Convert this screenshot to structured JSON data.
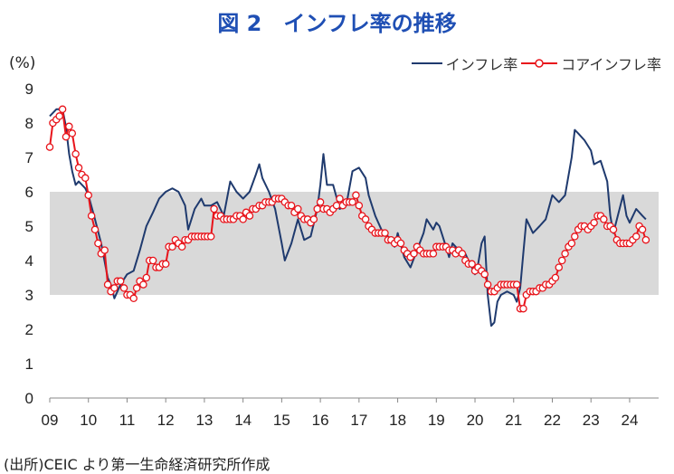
{
  "title": "図 2　インフレ率の推移",
  "unit_label": "(%)",
  "source": "(出所)CEIC より第一生命経済研究所作成",
  "chart_data": {
    "type": "line",
    "x_tick_labels": [
      "09",
      "10",
      "11",
      "12",
      "13",
      "14",
      "15",
      "16",
      "17",
      "18",
      "19",
      "20",
      "21",
      "22",
      "23",
      "24"
    ],
    "y_ticks": [
      0,
      1,
      2,
      3,
      4,
      5,
      6,
      7,
      8,
      9
    ],
    "ylim": [
      0,
      9
    ],
    "x_range": [
      2009.0,
      2024.75
    ],
    "band": {
      "from": 3,
      "to": 6,
      "color": "#d9d9d9"
    },
    "series": [
      {
        "name": "インフレ率",
        "color": "#1f3a6e",
        "marker": false,
        "points": [
          [
            2009.0,
            8.2
          ],
          [
            2009.17,
            8.4
          ],
          [
            2009.33,
            8.4
          ],
          [
            2009.42,
            7.9
          ],
          [
            2009.5,
            7.1
          ],
          [
            2009.58,
            6.6
          ],
          [
            2009.67,
            6.2
          ],
          [
            2009.75,
            6.3
          ],
          [
            2009.92,
            6.1
          ],
          [
            2010.0,
            5.9
          ],
          [
            2010.17,
            5.2
          ],
          [
            2010.33,
            4.5
          ],
          [
            2010.5,
            3.5
          ],
          [
            2010.58,
            3.3
          ],
          [
            2010.67,
            2.9
          ],
          [
            2010.83,
            3.3
          ],
          [
            2011.0,
            3.6
          ],
          [
            2011.17,
            3.7
          ],
          [
            2011.33,
            4.3
          ],
          [
            2011.5,
            5.0
          ],
          [
            2011.67,
            5.4
          ],
          [
            2011.83,
            5.8
          ],
          [
            2012.0,
            6.0
          ],
          [
            2012.17,
            6.1
          ],
          [
            2012.33,
            6.0
          ],
          [
            2012.5,
            5.6
          ],
          [
            2012.58,
            4.9
          ],
          [
            2012.75,
            5.5
          ],
          [
            2012.92,
            5.8
          ],
          [
            2013.0,
            5.6
          ],
          [
            2013.17,
            5.6
          ],
          [
            2013.33,
            5.7
          ],
          [
            2013.5,
            5.3
          ],
          [
            2013.67,
            6.3
          ],
          [
            2013.83,
            6.0
          ],
          [
            2014.0,
            5.8
          ],
          [
            2014.17,
            6.0
          ],
          [
            2014.33,
            6.5
          ],
          [
            2014.42,
            6.8
          ],
          [
            2014.5,
            6.4
          ],
          [
            2014.67,
            6.0
          ],
          [
            2014.83,
            5.5
          ],
          [
            2015.0,
            4.5
          ],
          [
            2015.08,
            4.0
          ],
          [
            2015.25,
            4.5
          ],
          [
            2015.42,
            5.2
          ],
          [
            2015.58,
            4.6
          ],
          [
            2015.75,
            4.7
          ],
          [
            2015.92,
            5.5
          ],
          [
            2016.0,
            6.2
          ],
          [
            2016.08,
            7.1
          ],
          [
            2016.17,
            6.2
          ],
          [
            2016.33,
            6.2
          ],
          [
            2016.5,
            5.5
          ],
          [
            2016.67,
            5.6
          ],
          [
            2016.83,
            6.6
          ],
          [
            2017.0,
            6.7
          ],
          [
            2017.17,
            6.4
          ],
          [
            2017.25,
            5.9
          ],
          [
            2017.42,
            5.3
          ],
          [
            2017.58,
            4.9
          ],
          [
            2017.75,
            4.7
          ],
          [
            2017.92,
            4.4
          ],
          [
            2018.0,
            4.8
          ],
          [
            2018.17,
            4.1
          ],
          [
            2018.33,
            3.8
          ],
          [
            2018.5,
            4.3
          ],
          [
            2018.67,
            4.8
          ],
          [
            2018.75,
            5.2
          ],
          [
            2018.92,
            4.9
          ],
          [
            2019.0,
            5.1
          ],
          [
            2019.08,
            5.0
          ],
          [
            2019.25,
            4.4
          ],
          [
            2019.33,
            4.1
          ],
          [
            2019.42,
            4.5
          ],
          [
            2019.58,
            4.3
          ],
          [
            2019.75,
            4.2
          ],
          [
            2019.83,
            4.0
          ],
          [
            2019.92,
            3.8
          ],
          [
            2020.0,
            3.6
          ],
          [
            2020.08,
            3.9
          ],
          [
            2020.17,
            4.5
          ],
          [
            2020.25,
            4.7
          ],
          [
            2020.33,
            3.0
          ],
          [
            2020.42,
            2.1
          ],
          [
            2020.5,
            2.2
          ],
          [
            2020.58,
            2.8
          ],
          [
            2020.67,
            3.0
          ],
          [
            2020.83,
            3.1
          ],
          [
            2021.0,
            3.0
          ],
          [
            2021.08,
            2.8
          ],
          [
            2021.17,
            3.2
          ],
          [
            2021.25,
            4.2
          ],
          [
            2021.33,
            5.2
          ],
          [
            2021.5,
            4.8
          ],
          [
            2021.67,
            5.0
          ],
          [
            2021.83,
            5.2
          ],
          [
            2022.0,
            5.9
          ],
          [
            2022.17,
            5.7
          ],
          [
            2022.33,
            5.9
          ],
          [
            2022.5,
            7.0
          ],
          [
            2022.58,
            7.8
          ],
          [
            2022.67,
            7.7
          ],
          [
            2022.83,
            7.5
          ],
          [
            2023.0,
            7.2
          ],
          [
            2023.08,
            6.8
          ],
          [
            2023.25,
            6.9
          ],
          [
            2023.42,
            6.3
          ],
          [
            2023.5,
            5.3
          ],
          [
            2023.58,
            4.8
          ],
          [
            2023.67,
            5.2
          ],
          [
            2023.83,
            5.9
          ],
          [
            2023.92,
            5.3
          ],
          [
            2024.0,
            5.1
          ],
          [
            2024.17,
            5.5
          ],
          [
            2024.33,
            5.3
          ],
          [
            2024.42,
            5.2
          ]
        ]
      },
      {
        "name": "コアインフレ率",
        "color": "#e8141b",
        "marker": true,
        "points": [
          [
            2009.0,
            7.3
          ],
          [
            2009.08,
            8.0
          ],
          [
            2009.17,
            8.1
          ],
          [
            2009.25,
            8.2
          ],
          [
            2009.33,
            8.4
          ],
          [
            2009.42,
            7.6
          ],
          [
            2009.5,
            7.9
          ],
          [
            2009.58,
            7.7
          ],
          [
            2009.67,
            7.1
          ],
          [
            2009.75,
            6.7
          ],
          [
            2009.83,
            6.5
          ],
          [
            2009.92,
            6.4
          ],
          [
            2010.0,
            5.9
          ],
          [
            2010.08,
            5.3
          ],
          [
            2010.17,
            4.9
          ],
          [
            2010.25,
            4.5
          ],
          [
            2010.33,
            4.2
          ],
          [
            2010.42,
            4.3
          ],
          [
            2010.5,
            3.3
          ],
          [
            2010.58,
            3.1
          ],
          [
            2010.67,
            3.2
          ],
          [
            2010.75,
            3.4
          ],
          [
            2010.83,
            3.4
          ],
          [
            2010.92,
            3.2
          ],
          [
            2011.0,
            3.0
          ],
          [
            2011.08,
            3.0
          ],
          [
            2011.17,
            2.9
          ],
          [
            2011.25,
            3.2
          ],
          [
            2011.33,
            3.4
          ],
          [
            2011.42,
            3.3
          ],
          [
            2011.5,
            3.5
          ],
          [
            2011.58,
            4.0
          ],
          [
            2011.67,
            4.0
          ],
          [
            2011.75,
            3.8
          ],
          [
            2011.83,
            3.8
          ],
          [
            2011.92,
            3.9
          ],
          [
            2012.0,
            3.9
          ],
          [
            2012.08,
            4.4
          ],
          [
            2012.17,
            4.4
          ],
          [
            2012.25,
            4.6
          ],
          [
            2012.33,
            4.5
          ],
          [
            2012.42,
            4.4
          ],
          [
            2012.5,
            4.6
          ],
          [
            2012.58,
            4.6
          ],
          [
            2012.67,
            4.7
          ],
          [
            2012.75,
            4.7
          ],
          [
            2012.83,
            4.7
          ],
          [
            2012.92,
            4.7
          ],
          [
            2013.0,
            4.7
          ],
          [
            2013.08,
            4.7
          ],
          [
            2013.17,
            4.7
          ],
          [
            2013.25,
            5.5
          ],
          [
            2013.33,
            5.3
          ],
          [
            2013.42,
            5.3
          ],
          [
            2013.5,
            5.2
          ],
          [
            2013.58,
            5.2
          ],
          [
            2013.67,
            5.2
          ],
          [
            2013.75,
            5.2
          ],
          [
            2013.83,
            5.3
          ],
          [
            2013.92,
            5.3
          ],
          [
            2014.0,
            5.2
          ],
          [
            2014.08,
            5.4
          ],
          [
            2014.17,
            5.3
          ],
          [
            2014.25,
            5.5
          ],
          [
            2014.33,
            5.5
          ],
          [
            2014.42,
            5.6
          ],
          [
            2014.5,
            5.6
          ],
          [
            2014.58,
            5.7
          ],
          [
            2014.67,
            5.7
          ],
          [
            2014.75,
            5.7
          ],
          [
            2014.83,
            5.8
          ],
          [
            2014.92,
            5.8
          ],
          [
            2015.0,
            5.8
          ],
          [
            2015.08,
            5.7
          ],
          [
            2015.17,
            5.6
          ],
          [
            2015.25,
            5.6
          ],
          [
            2015.33,
            5.4
          ],
          [
            2015.42,
            5.5
          ],
          [
            2015.5,
            5.3
          ],
          [
            2015.58,
            5.2
          ],
          [
            2015.67,
            5.2
          ],
          [
            2015.75,
            5.1
          ],
          [
            2015.83,
            5.2
          ],
          [
            2015.92,
            5.5
          ],
          [
            2016.0,
            5.7
          ],
          [
            2016.08,
            5.5
          ],
          [
            2016.17,
            5.5
          ],
          [
            2016.25,
            5.4
          ],
          [
            2016.33,
            5.5
          ],
          [
            2016.42,
            5.6
          ],
          [
            2016.5,
            5.8
          ],
          [
            2016.58,
            5.6
          ],
          [
            2016.67,
            5.7
          ],
          [
            2016.75,
            5.7
          ],
          [
            2016.83,
            5.7
          ],
          [
            2016.92,
            5.9
          ],
          [
            2017.0,
            5.6
          ],
          [
            2017.08,
            5.3
          ],
          [
            2017.17,
            5.2
          ],
          [
            2017.25,
            5.0
          ],
          [
            2017.33,
            4.9
          ],
          [
            2017.42,
            4.8
          ],
          [
            2017.5,
            4.8
          ],
          [
            2017.58,
            4.8
          ],
          [
            2017.67,
            4.8
          ],
          [
            2017.75,
            4.6
          ],
          [
            2017.83,
            4.6
          ],
          [
            2017.92,
            4.5
          ],
          [
            2018.0,
            4.6
          ],
          [
            2018.08,
            4.5
          ],
          [
            2018.17,
            4.3
          ],
          [
            2018.25,
            4.2
          ],
          [
            2018.33,
            4.1
          ],
          [
            2018.42,
            4.2
          ],
          [
            2018.5,
            4.4
          ],
          [
            2018.58,
            4.3
          ],
          [
            2018.67,
            4.2
          ],
          [
            2018.75,
            4.2
          ],
          [
            2018.83,
            4.2
          ],
          [
            2018.92,
            4.2
          ],
          [
            2019.0,
            4.4
          ],
          [
            2019.08,
            4.4
          ],
          [
            2019.17,
            4.4
          ],
          [
            2019.25,
            4.4
          ],
          [
            2019.33,
            4.3
          ],
          [
            2019.42,
            4.3
          ],
          [
            2019.5,
            4.2
          ],
          [
            2019.58,
            4.3
          ],
          [
            2019.67,
            4.2
          ],
          [
            2019.75,
            4.0
          ],
          [
            2019.83,
            3.9
          ],
          [
            2019.92,
            3.9
          ],
          [
            2020.0,
            3.7
          ],
          [
            2020.08,
            3.8
          ],
          [
            2020.17,
            3.7
          ],
          [
            2020.25,
            3.6
          ],
          [
            2020.33,
            3.3
          ],
          [
            2020.42,
            3.1
          ],
          [
            2020.5,
            3.1
          ],
          [
            2020.58,
            3.2
          ],
          [
            2020.67,
            3.3
          ],
          [
            2020.75,
            3.3
          ],
          [
            2020.83,
            3.3
          ],
          [
            2020.92,
            3.3
          ],
          [
            2021.0,
            3.3
          ],
          [
            2021.08,
            3.3
          ],
          [
            2021.17,
            2.6
          ],
          [
            2021.25,
            2.6
          ],
          [
            2021.33,
            3.0
          ],
          [
            2021.42,
            3.1
          ],
          [
            2021.5,
            3.1
          ],
          [
            2021.58,
            3.1
          ],
          [
            2021.67,
            3.2
          ],
          [
            2021.75,
            3.2
          ],
          [
            2021.83,
            3.3
          ],
          [
            2021.92,
            3.3
          ],
          [
            2022.0,
            3.4
          ],
          [
            2022.08,
            3.5
          ],
          [
            2022.17,
            3.8
          ],
          [
            2022.25,
            4.0
          ],
          [
            2022.33,
            4.2
          ],
          [
            2022.42,
            4.4
          ],
          [
            2022.5,
            4.5
          ],
          [
            2022.58,
            4.7
          ],
          [
            2022.67,
            4.9
          ],
          [
            2022.75,
            5.0
          ],
          [
            2022.83,
            5.0
          ],
          [
            2022.92,
            4.9
          ],
          [
            2023.0,
            5.0
          ],
          [
            2023.08,
            5.1
          ],
          [
            2023.17,
            5.3
          ],
          [
            2023.25,
            5.3
          ],
          [
            2023.33,
            5.2
          ],
          [
            2023.42,
            5.0
          ],
          [
            2023.5,
            5.0
          ],
          [
            2023.58,
            4.9
          ],
          [
            2023.67,
            4.6
          ],
          [
            2023.75,
            4.5
          ],
          [
            2023.83,
            4.5
          ],
          [
            2023.92,
            4.5
          ],
          [
            2024.0,
            4.5
          ],
          [
            2024.08,
            4.6
          ],
          [
            2024.17,
            4.7
          ],
          [
            2024.25,
            5.0
          ],
          [
            2024.33,
            4.9
          ],
          [
            2024.42,
            4.6
          ]
        ]
      }
    ]
  }
}
